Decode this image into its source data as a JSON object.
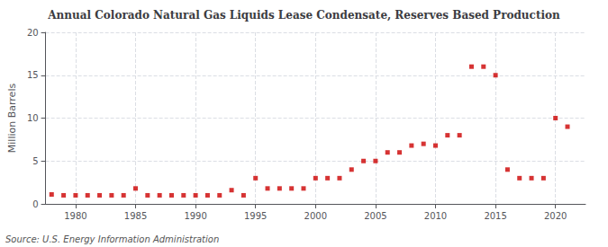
{
  "chart_data": {
    "type": "scatter",
    "title": "Annual Colorado Natural Gas Liquids Lease Condensate, Reserves Based Production",
    "ylabel": "Million Barrels",
    "annotations": [
      "Source: U.S. Energy Information Administration"
    ],
    "color": "#cc0000",
    "marker": "square",
    "grid": true,
    "xlim": [
      1977.5,
      2022.5
    ],
    "ylim": [
      0,
      20
    ],
    "xticks": [
      1980,
      1985,
      1990,
      1995,
      2000,
      2005,
      2010,
      2015,
      2020
    ],
    "yticks": [
      0,
      5,
      10,
      15,
      20
    ],
    "x": [
      1978,
      1979,
      1980,
      1981,
      1982,
      1983,
      1984,
      1985,
      1986,
      1987,
      1988,
      1989,
      1990,
      1991,
      1992,
      1993,
      1994,
      1995,
      1996,
      1997,
      1998,
      1999,
      2000,
      2001,
      2002,
      2003,
      2004,
      2005,
      2006,
      2007,
      2008,
      2009,
      2010,
      2011,
      2012,
      2013,
      2014,
      2015,
      2016,
      2017,
      2018,
      2019,
      2020,
      2021
    ],
    "values": [
      1.1,
      1.0,
      1.0,
      1.0,
      1.0,
      1.0,
      1.0,
      1.8,
      1.0,
      1.0,
      1.0,
      1.0,
      1.0,
      1.0,
      1.0,
      1.6,
      1.0,
      3.0,
      1.8,
      1.8,
      1.8,
      1.8,
      3.0,
      3.0,
      3.0,
      4.0,
      5.0,
      5.0,
      6.0,
      6.0,
      6.8,
      7.0,
      6.8,
      8.0,
      8.0,
      16.0,
      16.0,
      15.0,
      4.0,
      3.0,
      3.0,
      3.0,
      10.0,
      9.0
    ]
  }
}
